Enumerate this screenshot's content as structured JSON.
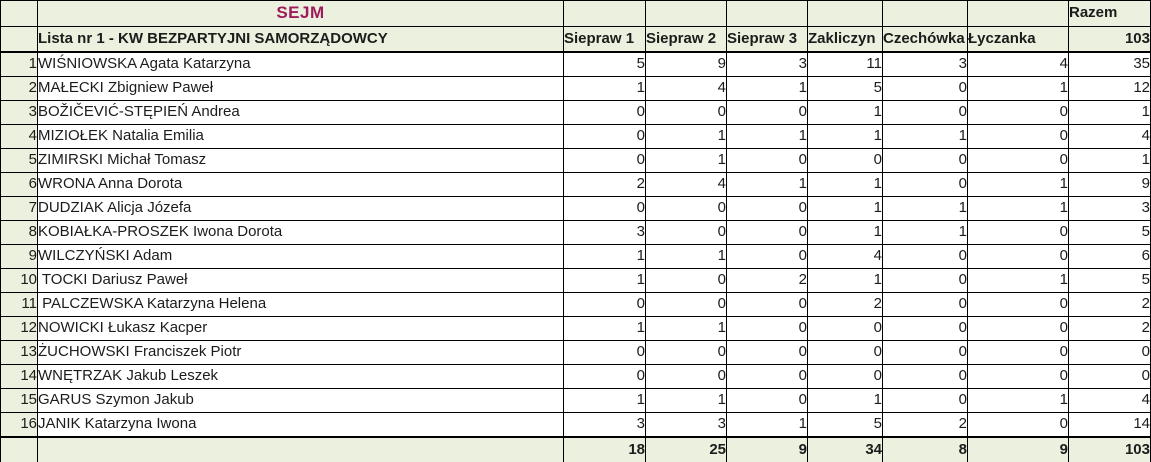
{
  "title": "SEJM",
  "list_header": "Lista nr 1 - KW BEZPARTYJNI SAMORZĄDOWCY",
  "razem": {
    "label": "Razem",
    "total": 103
  },
  "columns": [
    "Siepraw 1",
    "Siepraw 2",
    "Siepraw 3",
    "Zakliczyn",
    "Czechówka",
    "Łyczanka"
  ],
  "rows": [
    {
      "no": 1,
      "name": "WIŚNIOWSKA Agata Katarzyna",
      "votes": [
        5,
        9,
        3,
        11,
        3,
        4
      ],
      "razem": 35
    },
    {
      "no": 2,
      "name": "MAŁECKI Zbigniew Paweł",
      "votes": [
        1,
        4,
        1,
        5,
        0,
        1
      ],
      "razem": 12
    },
    {
      "no": 3,
      "name": "BOŽIČEVIĆ-STĘPIEŃ Andrea",
      "votes": [
        0,
        0,
        0,
        1,
        0,
        0
      ],
      "razem": 1
    },
    {
      "no": 4,
      "name": "MIZIOŁEK Natalia Emilia",
      "votes": [
        0,
        1,
        1,
        1,
        1,
        0
      ],
      "razem": 4
    },
    {
      "no": 5,
      "name": "ZIMIRSKI Michał Tomasz",
      "votes": [
        0,
        1,
        0,
        0,
        0,
        0
      ],
      "razem": 1
    },
    {
      "no": 6,
      "name": "WRONA Anna Dorota",
      "votes": [
        2,
        4,
        1,
        1,
        0,
        1
      ],
      "razem": 9
    },
    {
      "no": 7,
      "name": "DUDZIAK Alicja Józefa",
      "votes": [
        0,
        0,
        0,
        1,
        1,
        1
      ],
      "razem": 3
    },
    {
      "no": 8,
      "name": "KOBIAŁKA-PROSZEK Iwona Dorota",
      "votes": [
        3,
        0,
        0,
        1,
        1,
        0
      ],
      "razem": 5
    },
    {
      "no": 9,
      "name": "WILCZYŃSKI Adam",
      "votes": [
        1,
        1,
        0,
        4,
        0,
        0
      ],
      "razem": 6
    },
    {
      "no": 10,
      "name": " TOCKI Dariusz Paweł",
      "votes": [
        1,
        0,
        2,
        1,
        0,
        1
      ],
      "razem": 5
    },
    {
      "no": 11,
      "name": " PALCZEWSKA Katarzyna Helena",
      "votes": [
        0,
        0,
        0,
        2,
        0,
        0
      ],
      "razem": 2
    },
    {
      "no": 12,
      "name": "NOWICKI Łukasz Kacper",
      "votes": [
        1,
        1,
        0,
        0,
        0,
        0
      ],
      "razem": 2
    },
    {
      "no": 13,
      "name": "ŻUCHOWSKI Franciszek Piotr",
      "votes": [
        0,
        0,
        0,
        0,
        0,
        0
      ],
      "razem": 0
    },
    {
      "no": 14,
      "name": "WNĘTRZAK Jakub Leszek",
      "votes": [
        0,
        0,
        0,
        0,
        0,
        0
      ],
      "razem": 0
    },
    {
      "no": 15,
      "name": "GARUS Szymon Jakub",
      "votes": [
        1,
        1,
        0,
        1,
        0,
        1
      ],
      "razem": 4
    },
    {
      "no": 16,
      "name": "JANIK Katarzyna Iwona",
      "votes": [
        3,
        3,
        1,
        5,
        2,
        0
      ],
      "razem": 14
    }
  ],
  "totals": {
    "votes": [
      18,
      25,
      9,
      34,
      8,
      9
    ],
    "razem": 103
  },
  "colors": {
    "header_bg": "#EBF1DE",
    "title_color": "#9E1B5C",
    "border": "#000000"
  }
}
